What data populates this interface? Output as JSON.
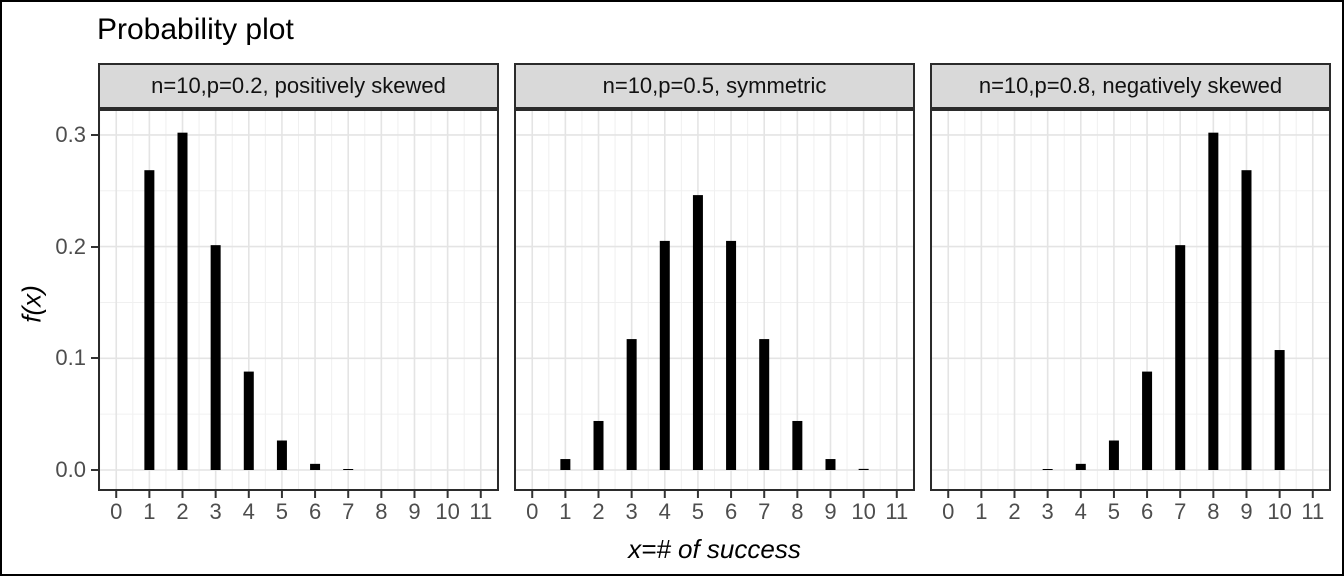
{
  "chart_data": {
    "type": "bar",
    "title": "Probability plot",
    "xlabel": "x=# of success",
    "ylabel": "f(x)",
    "x_ticks": [
      0,
      1,
      2,
      3,
      4,
      5,
      6,
      7,
      8,
      9,
      10,
      11
    ],
    "x_tick_labels": [
      "0",
      "1",
      "2",
      "3",
      "4",
      "5",
      "6",
      "7",
      "8",
      "9",
      "10",
      "11"
    ],
    "y_ticks": [
      0,
      0.1,
      0.2,
      0.3
    ],
    "y_tick_labels": [
      "0.0",
      "0.1",
      "0.2",
      "0.3"
    ],
    "y_minor_ticks": [
      0.05,
      0.15,
      0.25
    ],
    "xlim": [
      -0.55,
      11.55
    ],
    "ylim": [
      -0.019,
      0.323
    ],
    "grid": "major and minor gridlines, light gray on white, panel border (theme_bw)",
    "legend": "none",
    "facets": [
      {
        "label": "n=10,p=0.2, positively skewed",
        "x": [
          1,
          2,
          3,
          4,
          5,
          6,
          7,
          8,
          9,
          10
        ],
        "values": [
          0.2684,
          0.302,
          0.2013,
          0.0881,
          0.0264,
          0.0055,
          0.0008,
          0.0001,
          0,
          0
        ]
      },
      {
        "label": "n=10,p=0.5, symmetric",
        "x": [
          1,
          2,
          3,
          4,
          5,
          6,
          7,
          8,
          9,
          10
        ],
        "values": [
          0.0098,
          0.0439,
          0.1172,
          0.2051,
          0.2461,
          0.2051,
          0.1172,
          0.0439,
          0.0098,
          0.001
        ]
      },
      {
        "label": "n=10,p=0.8, negatively skewed",
        "x": [
          1,
          2,
          3,
          4,
          5,
          6,
          7,
          8,
          9,
          10
        ],
        "values": [
          0,
          0,
          0.0008,
          0.0055,
          0.0264,
          0.0881,
          0.2013,
          0.302,
          0.2684,
          0.1074
        ]
      }
    ]
  },
  "colors": {
    "bar": "#000000",
    "panel_background": "#ffffff",
    "panel_border": "#2b2b2b",
    "strip_background": "#d9d9d9",
    "strip_border": "#2b2b2b",
    "grid_major": "#e4e4e4",
    "grid_minor": "#f0f0f0",
    "tick_mark": "#333333",
    "tick_label": "#4d4d4d",
    "title_text": "#000000",
    "figure_border": "#000000"
  }
}
